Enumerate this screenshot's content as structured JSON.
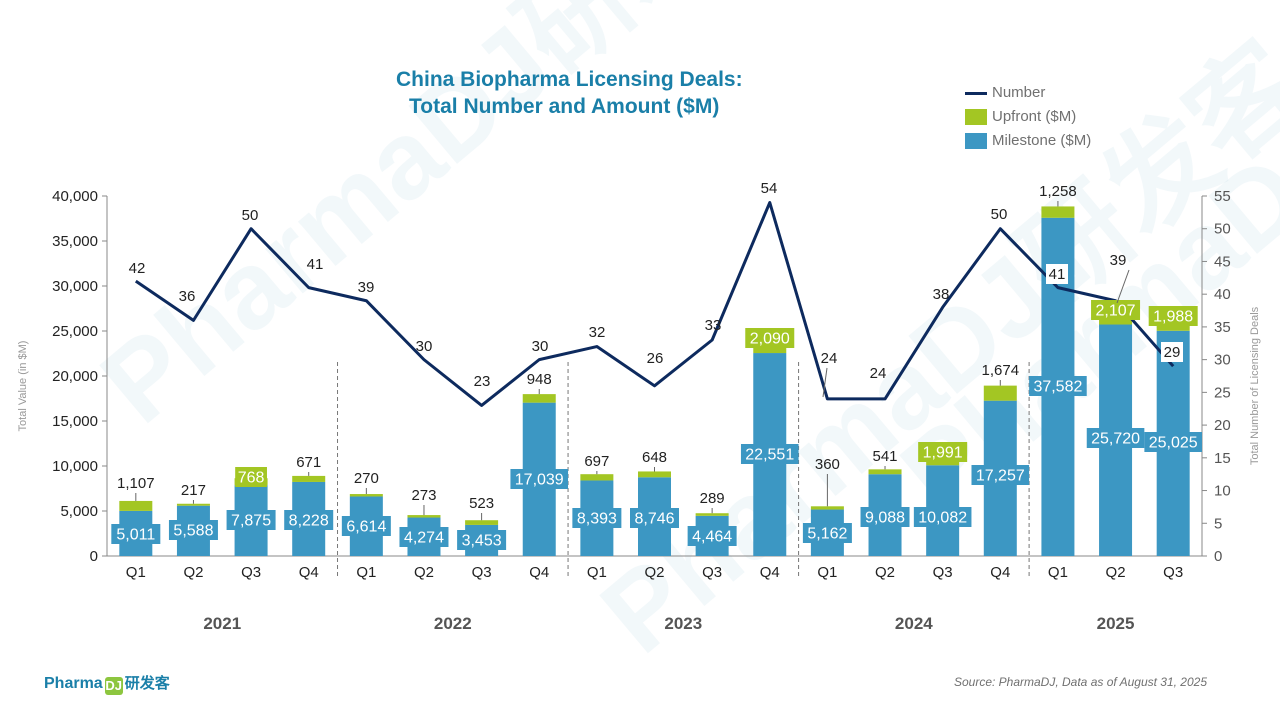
{
  "header": {
    "title_line1": "China Biopharma Licensing Deals:",
    "title_line2": "Total Number and Amount ($M)"
  },
  "legend": {
    "items": [
      {
        "label": "Number",
        "kind": "line",
        "color": "#0d2a5e"
      },
      {
        "label": "Upfront ($M)",
        "kind": "box",
        "color": "#a3c623"
      },
      {
        "label": "Milestone ($M)",
        "kind": "box",
        "color": "#3c97c3"
      }
    ]
  },
  "footer": {
    "brand_en": "Pharma",
    "brand_mark": "DJ",
    "brand_cn": "研发客",
    "source": "Source: PharmaDJ, Data as of August 31, 2025"
  },
  "watermark": {
    "text": "PharmaDJ研发客"
  },
  "chart_data": {
    "type": "bar",
    "stacked": true,
    "title": "China Biopharma Licensing Deals: Total Number and Amount ($M)",
    "ylabel": "Total Value (in $M)",
    "y2label": "Total Number of Licensing Deals",
    "ylim": [
      0,
      40000
    ],
    "y2lim": [
      0,
      55
    ],
    "yticks": [
      0,
      5000,
      10000,
      15000,
      20000,
      25000,
      30000,
      35000,
      40000
    ],
    "y2ticks": [
      0,
      5,
      10,
      15,
      20,
      25,
      30,
      35,
      40,
      45,
      50,
      55
    ],
    "categories": [
      "Q1",
      "Q2",
      "Q3",
      "Q4",
      "Q1",
      "Q2",
      "Q3",
      "Q4",
      "Q1",
      "Q2",
      "Q3",
      "Q4",
      "Q1",
      "Q2",
      "Q3",
      "Q4",
      "Q1",
      "Q2",
      "Q3"
    ],
    "groups": [
      {
        "label": "2021",
        "count": 4
      },
      {
        "label": "2022",
        "count": 4
      },
      {
        "label": "2023",
        "count": 4
      },
      {
        "label": "2024",
        "count": 4
      },
      {
        "label": "2025",
        "count": 3
      }
    ],
    "series": [
      {
        "name": "Milestone ($M)",
        "axis": "left",
        "color": "#3c97c3",
        "values": [
          5011,
          5588,
          7875,
          8228,
          6614,
          4274,
          3453,
          17039,
          8393,
          8746,
          4464,
          22551,
          5162,
          9088,
          10082,
          17257,
          37582,
          25720,
          25025
        ]
      },
      {
        "name": "Upfront ($M)",
        "axis": "left",
        "color": "#a3c623",
        "values": [
          1107,
          217,
          768,
          671,
          270,
          273,
          523,
          948,
          697,
          648,
          289,
          2090,
          360,
          541,
          1991,
          1674,
          1258,
          2107,
          1988
        ]
      },
      {
        "name": "Number",
        "axis": "right",
        "type": "line",
        "color": "#0d2a5e",
        "values": [
          42,
          36,
          50,
          41,
          39,
          30,
          23,
          30,
          32,
          26,
          33,
          54,
          24,
          24,
          38,
          50,
          41,
          39,
          29
        ]
      }
    ],
    "grid": false,
    "legend_position": "top-right"
  }
}
